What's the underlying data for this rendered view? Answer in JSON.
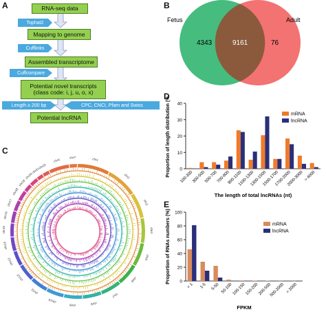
{
  "panels": {
    "a": "A",
    "b": "B",
    "c": "C",
    "d": "D",
    "e": "E"
  },
  "flow": {
    "steps": [
      "RNA-seq data",
      "Mapping to genome",
      "Assembled transcriptome",
      "Potential novel transcripts (class code: i, j, u, o, x)",
      "Potential lncRNA"
    ],
    "tools": [
      "Tophat2",
      "Cufflinks",
      "Cuffcompare"
    ],
    "filter_left": "Length ≥ 200 bp",
    "filter_right": "CPC, CNCI, Pfam and Swiss"
  },
  "venn": {
    "left_label": "Fetus",
    "right_label": "Adult",
    "left_only": "4343",
    "overlap": "9161",
    "right_only": "76",
    "left_color": "#3cb878",
    "right_color": "#f26a6a"
  },
  "circos": {
    "chromosomes": [
      "chr1",
      "chr2",
      "chr3",
      "chr4",
      "chr5",
      "chr6",
      "chr7",
      "chr8",
      "chr9",
      "chr10",
      "chr11",
      "chr12",
      "chr13",
      "chr14",
      "chr15",
      "chr16",
      "chr17",
      "chr18",
      "chr19",
      "chr20",
      "chr21",
      "chr22",
      "chrX",
      "chrY"
    ]
  },
  "chart_data": [
    {
      "type": "bar",
      "ylabel": "Proportion of length distribution (%)",
      "xlabel": "The length of total lncRNAs (nt)",
      "categories": [
        "100-300",
        "300-500",
        "500-700",
        "700-900",
        "900-1100",
        "1100-1300",
        "1300-1500",
        "1500-1700",
        "1700-2000",
        "2000-3000",
        "> 4000"
      ],
      "series": [
        {
          "name": "mRNA",
          "color": "#f07a2a",
          "values": [
            0.5,
            4.0,
            4.0,
            5.0,
            23.5,
            5.5,
            20.5,
            6.0,
            18.5,
            8.0,
            3.5
          ]
        },
        {
          "name": "lncRNA",
          "color": "#2b2f7a",
          "values": [
            0.2,
            1.0,
            2.5,
            7.5,
            22.5,
            10.5,
            32.0,
            6.0,
            15.0,
            3.0,
            1.0
          ]
        }
      ],
      "ylim": [
        0,
        40
      ],
      "yticks": [
        "0",
        "10",
        "20",
        "30",
        "40"
      ],
      "legend": "top-right"
    },
    {
      "type": "bar",
      "ylabel": "Proportion of RNAs numbers (%)",
      "xlabel": "FPKM",
      "categories": [
        "< 1",
        "1-5",
        "5-50",
        "50-100",
        "100-150",
        "150-200",
        "200-500",
        "500-2000",
        "> 2000"
      ],
      "series": [
        {
          "name": "mRNA",
          "color": "#d98b5c",
          "values": [
            46,
            28,
            22,
            2,
            0.8,
            0.4,
            0.4,
            0.2,
            0.1
          ]
        },
        {
          "name": "lncRNA",
          "color": "#2b2f7a",
          "values": [
            81,
            15,
            5,
            0.5,
            0.2,
            0.1,
            0.1,
            0.1,
            0.05
          ]
        }
      ],
      "ylim": [
        0,
        100
      ],
      "yticks": [
        "0",
        "20",
        "40",
        "60",
        "80",
        "100"
      ],
      "legend": "top-right"
    }
  ]
}
